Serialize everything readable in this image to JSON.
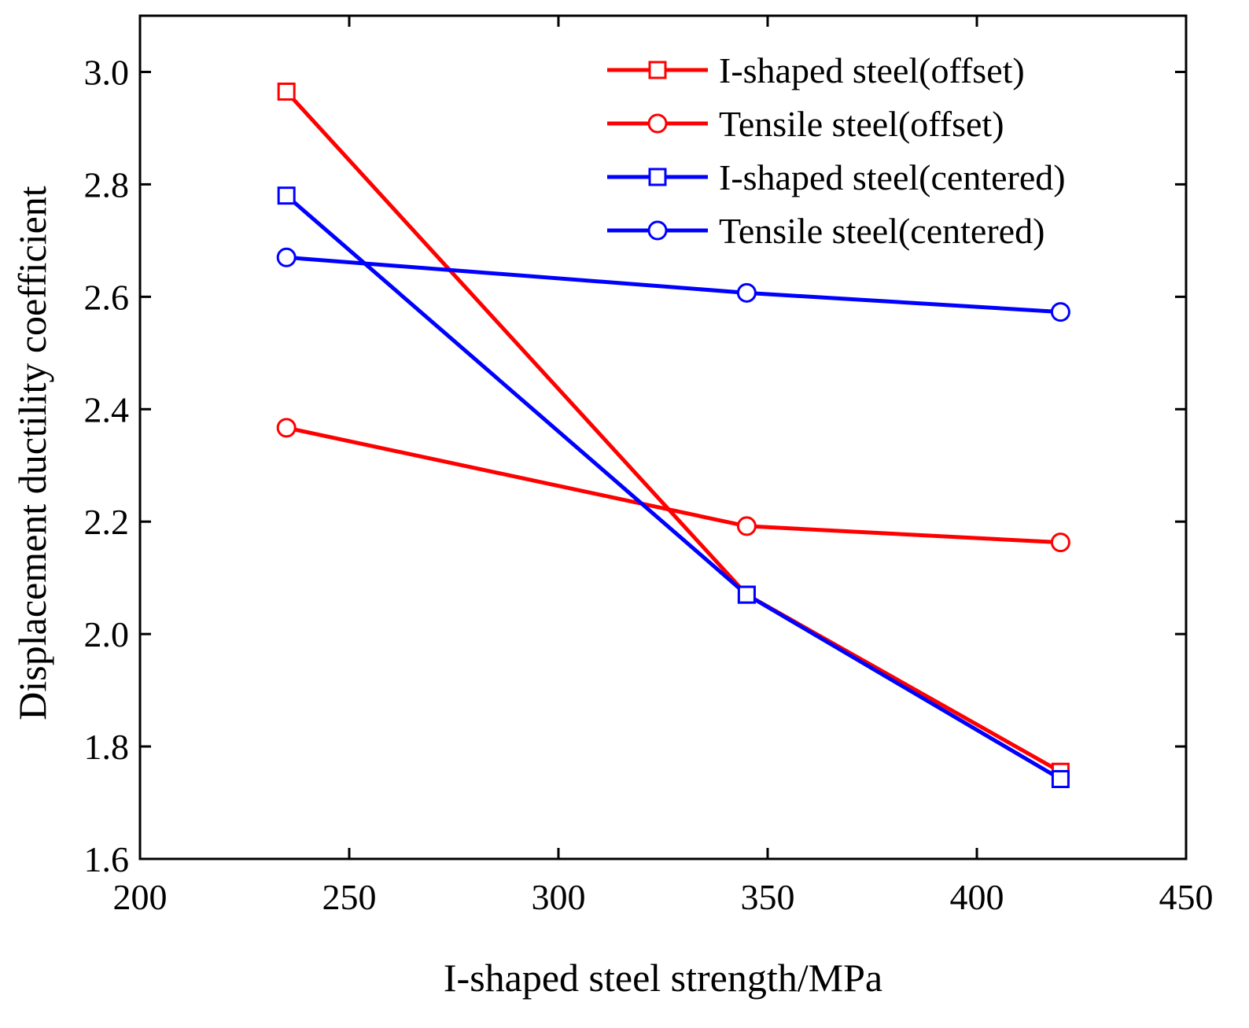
{
  "chart_data": {
    "type": "line",
    "title": "",
    "xlabel": "I-shaped steel strength/MPa",
    "ylabel": "Displacement ductility coefficient",
    "xlim": [
      200,
      450
    ],
    "ylim": [
      1.6,
      3.1
    ],
    "xticks": [
      200,
      250,
      300,
      350,
      400,
      450
    ],
    "xtick_labels": [
      "200",
      "250",
      "300",
      "350",
      "400",
      "450"
    ],
    "yticks": [
      1.6,
      1.8,
      2.0,
      2.2,
      2.4,
      2.6,
      2.8,
      3.0
    ],
    "ytick_labels": [
      "1.6",
      "1.8",
      "2.0",
      "2.2",
      "2.4",
      "2.6",
      "2.8",
      "3.0"
    ],
    "grid": false,
    "legend_position": "top-right",
    "x": [
      235,
      345,
      420
    ],
    "series": [
      {
        "name": "I-shaped steel(offset)",
        "color": "#ff0000",
        "marker": "square",
        "values": [
          2.965,
          2.07,
          1.755
        ]
      },
      {
        "name": "Tensile steel(offset)",
        "color": "#ff0000",
        "marker": "circle",
        "values": [
          2.367,
          2.192,
          2.163
        ]
      },
      {
        "name": "I-shaped steel(centered)",
        "color": "#0000ff",
        "marker": "square",
        "values": [
          2.78,
          2.07,
          1.742
        ]
      },
      {
        "name": "Tensile steel(centered)",
        "color": "#0000ff",
        "marker": "circle",
        "values": [
          2.67,
          2.607,
          2.573
        ]
      }
    ]
  }
}
